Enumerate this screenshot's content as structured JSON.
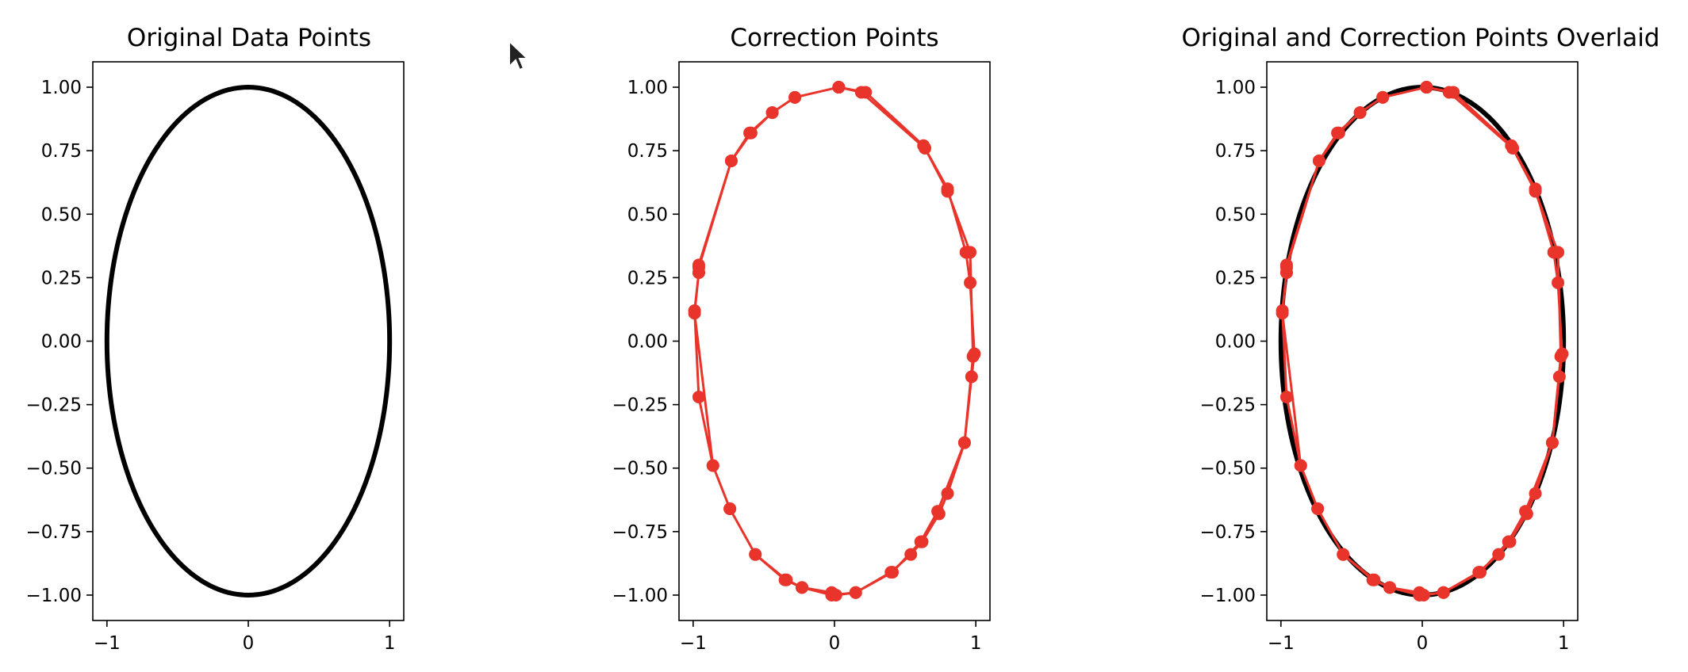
{
  "colors": {
    "original": "#000000",
    "correction": "#e8342a",
    "axes": "#000000",
    "background": "#ffffff"
  },
  "cursor_icon": "mouse-pointer-icon",
  "chart_data": [
    {
      "type": "line",
      "title": "Original Data Points",
      "xlim": [
        -1.1,
        1.1
      ],
      "ylim": [
        -1.1,
        1.1
      ],
      "xticks": [
        -1,
        0,
        1
      ],
      "xticklabels": [
        "−1",
        "0",
        "1"
      ],
      "yticks": [
        1.0,
        0.75,
        0.5,
        0.25,
        0.0,
        -0.25,
        -0.5,
        -0.75,
        -1.0
      ],
      "yticklabels": [
        "1.00",
        "0.75",
        "0.50",
        "0.25",
        "0.00",
        "−0.25",
        "−0.50",
        "−0.75",
        "−1.00"
      ],
      "series": [
        {
          "name": "original",
          "curve": "unit circle x=cos(t), y=sin(t), t in [0, 2π]",
          "color": "#000000",
          "marker": "none"
        }
      ]
    },
    {
      "type": "line",
      "title": "Correction Points",
      "xlim": [
        -1.1,
        1.1
      ],
      "ylim": [
        -1.1,
        1.1
      ],
      "xticks": [
        -1,
        0,
        1
      ],
      "xticklabels": [
        "−1",
        "0",
        "1"
      ],
      "yticks": [
        1.0,
        0.75,
        0.5,
        0.25,
        0.0,
        -0.25,
        -0.5,
        -0.75,
        -1.0
      ],
      "yticklabels": [
        "1.00",
        "0.75",
        "0.50",
        "0.25",
        "0.00",
        "−0.25",
        "−0.50",
        "−0.75",
        "−1.00"
      ],
      "series": [
        {
          "name": "correction",
          "color": "#e8342a",
          "marker": "o",
          "x": [
            0.03,
            0.22,
            0.63,
            0.8,
            0.93,
            0.96,
            0.99,
            0.97,
            0.92,
            0.8,
            0.74,
            0.62,
            0.54,
            0.4,
            0.15,
            0.01,
            -0.02,
            -0.23,
            -0.34,
            -0.56,
            -0.74,
            -0.86,
            -0.96,
            -0.99,
            -0.96,
            -0.96,
            -0.73,
            -0.6,
            -0.44,
            -0.28,
            0.03,
            0.19,
            0.64,
            0.8,
            0.96,
            0.98,
            0.92,
            0.73,
            0.61,
            0.41,
            0.15,
            -0.02,
            -0.23,
            -0.35,
            -0.56,
            -0.74,
            -0.86,
            -0.99,
            -0.96,
            -0.96,
            -0.73,
            -0.59,
            -0.44,
            -0.28,
            0.03
          ],
          "y": [
            1.0,
            0.98,
            0.77,
            0.6,
            0.35,
            0.23,
            -0.05,
            -0.14,
            -0.4,
            -0.6,
            -0.68,
            -0.79,
            -0.84,
            -0.91,
            -0.99,
            -1.0,
            -0.99,
            -0.97,
            -0.94,
            -0.84,
            -0.66,
            -0.49,
            -0.22,
            0.12,
            0.27,
            0.3,
            0.71,
            0.82,
            0.9,
            0.96,
            1.0,
            0.98,
            0.76,
            0.59,
            0.35,
            -0.06,
            -0.4,
            -0.67,
            -0.79,
            -0.91,
            -0.99,
            -1.0,
            -0.97,
            -0.94,
            -0.84,
            -0.66,
            -0.49,
            0.11,
            0.27,
            0.29,
            0.71,
            0.82,
            0.9,
            0.96,
            1.0
          ]
        }
      ]
    },
    {
      "type": "line",
      "title": "Original and Correction Points Overlaid",
      "xlim": [
        -1.1,
        1.1
      ],
      "ylim": [
        -1.1,
        1.1
      ],
      "xticks": [
        -1,
        0,
        1
      ],
      "xticklabels": [
        "−1",
        "0",
        "1"
      ],
      "yticks": [
        1.0,
        0.75,
        0.5,
        0.25,
        0.0,
        -0.25,
        -0.5,
        -0.75,
        -1.0
      ],
      "yticklabels": [
        "1.00",
        "0.75",
        "0.50",
        "0.25",
        "0.00",
        "−0.25",
        "−0.50",
        "−0.75",
        "−1.00"
      ],
      "series": [
        {
          "name": "original",
          "curve": "unit circle x=cos(t), y=sin(t), t in [0, 2π]",
          "color": "#000000",
          "marker": "none"
        },
        {
          "name": "correction",
          "color": "#e8342a",
          "marker": "o",
          "x": [
            0.03,
            0.22,
            0.63,
            0.8,
            0.93,
            0.96,
            0.99,
            0.97,
            0.92,
            0.8,
            0.74,
            0.62,
            0.54,
            0.4,
            0.15,
            0.01,
            -0.02,
            -0.23,
            -0.34,
            -0.56,
            -0.74,
            -0.86,
            -0.96,
            -0.99,
            -0.96,
            -0.96,
            -0.73,
            -0.6,
            -0.44,
            -0.28,
            0.03,
            0.19,
            0.64,
            0.8,
            0.96,
            0.98,
            0.92,
            0.73,
            0.61,
            0.41,
            0.15,
            -0.02,
            -0.23,
            -0.35,
            -0.56,
            -0.74,
            -0.86,
            -0.99,
            -0.96,
            -0.96,
            -0.73,
            -0.59,
            -0.44,
            -0.28,
            0.03
          ],
          "y": [
            1.0,
            0.98,
            0.77,
            0.6,
            0.35,
            0.23,
            -0.05,
            -0.14,
            -0.4,
            -0.6,
            -0.68,
            -0.79,
            -0.84,
            -0.91,
            -0.99,
            -1.0,
            -0.99,
            -0.97,
            -0.94,
            -0.84,
            -0.66,
            -0.49,
            -0.22,
            0.12,
            0.27,
            0.3,
            0.71,
            0.82,
            0.9,
            0.96,
            1.0,
            0.98,
            0.76,
            0.59,
            0.35,
            -0.06,
            -0.4,
            -0.67,
            -0.79,
            -0.91,
            -0.99,
            -1.0,
            -0.97,
            -0.94,
            -0.84,
            -0.66,
            -0.49,
            0.11,
            0.27,
            0.29,
            0.71,
            0.82,
            0.9,
            0.96,
            1.0
          ]
        }
      ]
    }
  ]
}
